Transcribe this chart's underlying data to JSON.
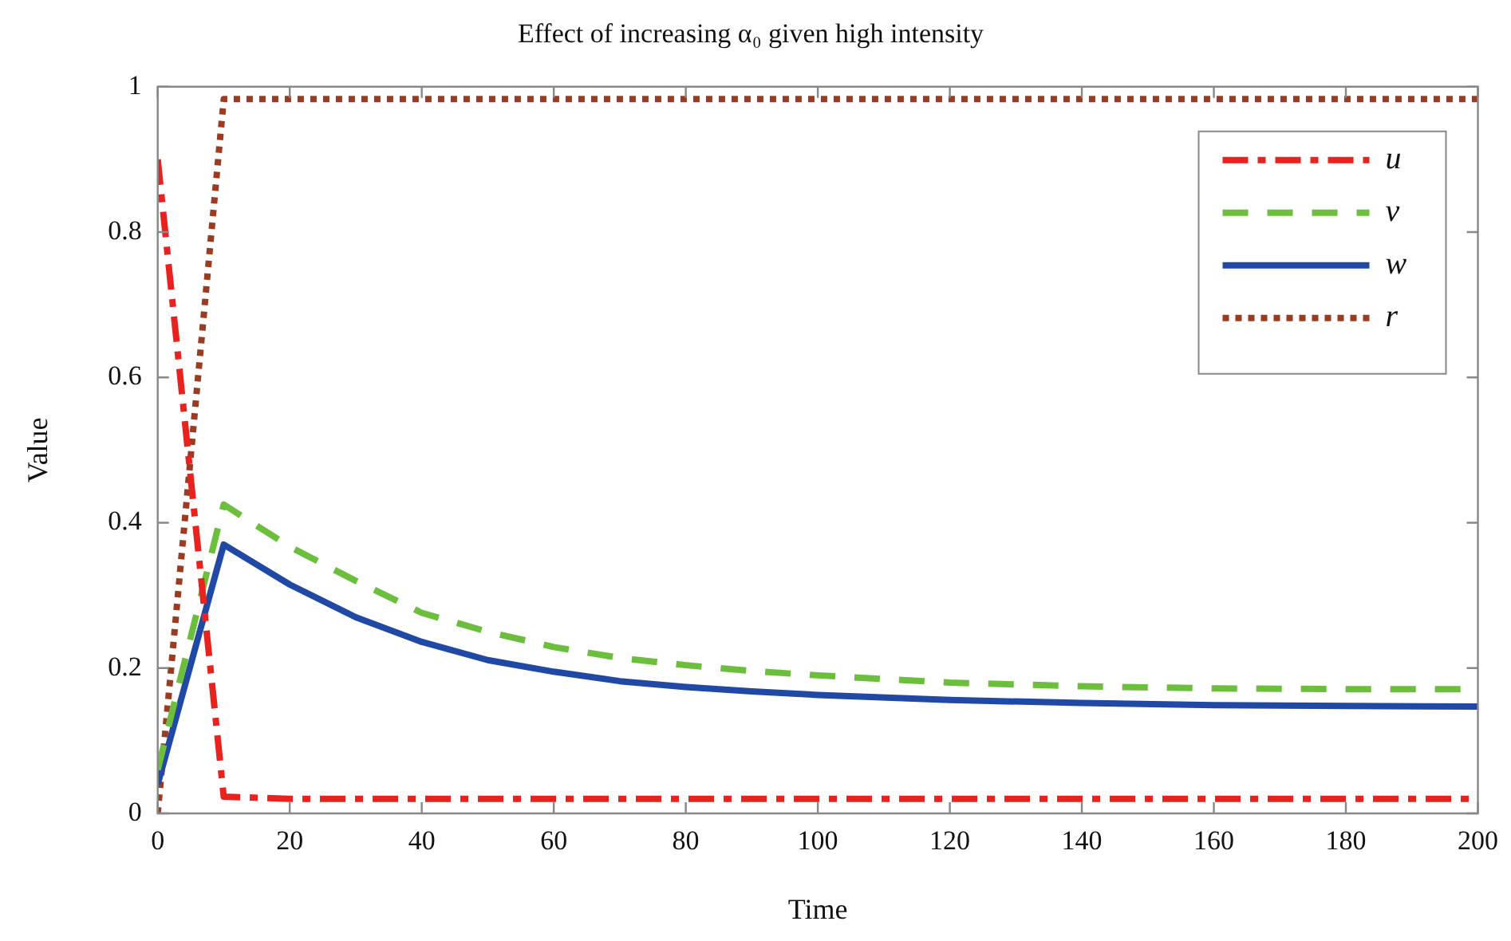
{
  "chart_data": {
    "type": "line",
    "title": "Effect of increasing α₀ given high intensity",
    "xlabel": "Time",
    "ylabel": "Value",
    "x": [
      0,
      10,
      20,
      30,
      40,
      50,
      60,
      70,
      80,
      90,
      100,
      120,
      140,
      160,
      180,
      200
    ],
    "series": [
      {
        "name": "u",
        "color": "#e8221f",
        "line_style": "dashdot",
        "values": [
          0.9,
          0.023,
          0.02,
          0.02,
          0.02,
          0.02,
          0.02,
          0.02,
          0.02,
          0.02,
          0.02,
          0.02,
          0.02,
          0.02,
          0.02,
          0.02
        ]
      },
      {
        "name": "v",
        "color": "#6cbf3c",
        "line_style": "dashed",
        "values": [
          0.06,
          0.425,
          0.367,
          0.32,
          0.276,
          0.25,
          0.229,
          0.214,
          0.204,
          0.196,
          0.19,
          0.18,
          0.175,
          0.172,
          0.171,
          0.171
        ]
      },
      {
        "name": "w",
        "color": "#1f49a4",
        "line_style": "solid",
        "values": [
          0.04,
          0.37,
          0.315,
          0.27,
          0.236,
          0.211,
          0.195,
          0.182,
          0.174,
          0.168,
          0.163,
          0.156,
          0.152,
          0.149,
          0.148,
          0.147
        ]
      },
      {
        "name": "r",
        "color": "#9b3b22",
        "line_style": "dotted",
        "values": [
          0,
          0.983,
          0.983,
          0.983,
          0.983,
          0.983,
          0.983,
          0.983,
          0.983,
          0.983,
          0.983,
          0.983,
          0.983,
          0.983,
          0.983,
          0.983
        ]
      }
    ],
    "xlim": [
      0,
      200
    ],
    "xticks": [
      0,
      20,
      40,
      60,
      80,
      100,
      120,
      140,
      160,
      180,
      200
    ],
    "ylim": [
      0,
      1
    ],
    "yticks": [
      0,
      0.2,
      0.4,
      0.6,
      0.8,
      1
    ],
    "grid": false,
    "legend": "top right",
    "marker": "none"
  }
}
